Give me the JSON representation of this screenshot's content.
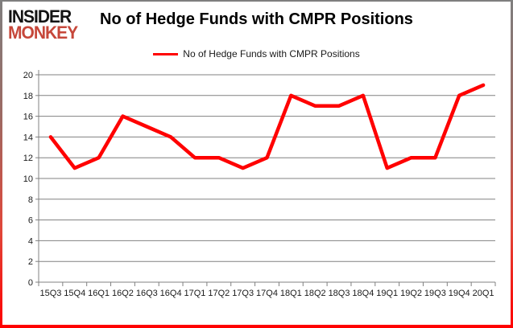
{
  "window": {
    "background": "#ffffff",
    "frame_top_color": "#7f7f7f",
    "frame_bottom_color": "#ff0000"
  },
  "logo": {
    "line1": "INSIDER",
    "line2": "MONKEY",
    "line1_color": "#141414",
    "line2_color": "#c6473a"
  },
  "header": {
    "title": "No of Hedge Funds with CMPR Positions"
  },
  "legend": {
    "label": "No of Hedge Funds with CMPR Positions",
    "marker_color": "#ff0000"
  },
  "chart_data": {
    "type": "line",
    "title": "No of Hedge Funds with CMPR Positions",
    "categories": [
      "15Q3",
      "15Q4",
      "16Q1",
      "16Q2",
      "16Q3",
      "16Q4",
      "17Q1",
      "17Q2",
      "17Q3",
      "17Q4",
      "18Q1",
      "18Q2",
      "18Q3",
      "18Q4",
      "19Q1",
      "19Q2",
      "19Q3",
      "19Q4",
      "20Q1"
    ],
    "series": [
      {
        "name": "No of Hedge Funds with CMPR Positions",
        "color": "#ff0000",
        "values": [
          14,
          11,
          12,
          16,
          15,
          14,
          12,
          12,
          11,
          12,
          18,
          17,
          17,
          18,
          11,
          12,
          12,
          18,
          19
        ]
      }
    ],
    "xlabel": "",
    "ylabel": "",
    "ylim": [
      0,
      20
    ],
    "ytick_step": 2,
    "grid": true,
    "legend_position": "top",
    "grid_color": "#808080",
    "axis_color": "#808080",
    "label_color": "#1a1a1a"
  }
}
